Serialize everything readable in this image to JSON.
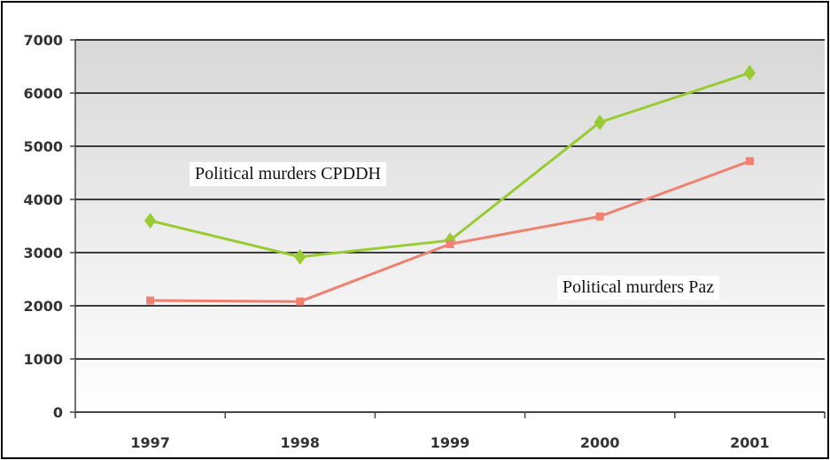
{
  "chart_data": {
    "type": "line",
    "categories": [
      "1997",
      "1998",
      "1999",
      "2000",
      "2001"
    ],
    "series": [
      {
        "name": "Political murders CPDDH",
        "values": [
          3600,
          2920,
          3230,
          5450,
          6380
        ],
        "color": "#99cc33",
        "marker": "diamond"
      },
      {
        "name": "Political murders Paz",
        "values": [
          2100,
          2080,
          3160,
          3680,
          4720
        ],
        "color": "#f08070",
        "marker": "square"
      }
    ],
    "ylim": [
      0,
      7000
    ],
    "yticks": [
      "0",
      "1000",
      "2000",
      "3000",
      "4000",
      "5000",
      "6000",
      "7000"
    ],
    "grid": true,
    "background_gradient": [
      "#d8d8d8",
      "#ffffff"
    ],
    "annotations": [
      "Political murders CPDDH",
      "Political murders Paz"
    ]
  }
}
